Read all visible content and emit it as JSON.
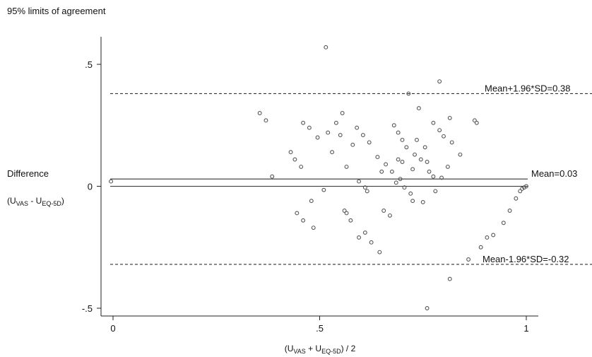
{
  "chart_data": {
    "type": "scatter",
    "title": "95% limits of agreement",
    "ylabel": {
      "line1": "Difference",
      "prefix": "(U",
      "sub1": "VAS",
      "mid": " - U",
      "sub2": "EQ-5D",
      "suffix": ")"
    },
    "xlabel": {
      "prefix": "(U",
      "sub1": "VAS",
      "mid": " + U",
      "sub2": "EQ-5D",
      "suffix": ") / 2"
    },
    "xlim": [
      0,
      1
    ],
    "ylim": [
      -0.5,
      0.5
    ],
    "xticks": [
      {
        "value": 0,
        "label": "0"
      },
      {
        "value": 0.5,
        "label": ".5"
      },
      {
        "value": 1,
        "label": "1"
      }
    ],
    "yticks": [
      {
        "value": 0.5,
        "label": ".5"
      },
      {
        "value": 0,
        "label": "0"
      },
      {
        "value": -0.5,
        "label": "-.5"
      }
    ],
    "grid": false,
    "reference_lines": [
      {
        "value": 0.38,
        "style": "dashed",
        "label": "Mean+1.96*SD=0.38"
      },
      {
        "value": 0.03,
        "style": "solid",
        "label": "Mean=0.03"
      },
      {
        "value": -0.32,
        "style": "dashed",
        "label": "Mean-1.96*SD=-0.32"
      },
      {
        "value": 0,
        "style": "solid",
        "label": ""
      }
    ],
    "points": [
      [
        -0.005,
        0.02
      ],
      [
        0.355,
        0.3
      ],
      [
        0.37,
        0.27
      ],
      [
        0.385,
        0.04
      ],
      [
        0.43,
        0.14
      ],
      [
        0.44,
        0.11
      ],
      [
        0.445,
        -0.11
      ],
      [
        0.455,
        0.08
      ],
      [
        0.46,
        0.26
      ],
      [
        0.46,
        -0.14
      ],
      [
        0.475,
        0.24
      ],
      [
        0.48,
        -0.06
      ],
      [
        0.485,
        -0.17
      ],
      [
        0.495,
        0.2
      ],
      [
        0.51,
        -0.015
      ],
      [
        0.515,
        0.57
      ],
      [
        0.52,
        0.22
      ],
      [
        0.53,
        0.14
      ],
      [
        0.54,
        0.26
      ],
      [
        0.55,
        0.21
      ],
      [
        0.555,
        0.3
      ],
      [
        0.56,
        -0.1
      ],
      [
        0.565,
        0.08
      ],
      [
        0.565,
        -0.11
      ],
      [
        0.575,
        -0.14
      ],
      [
        0.58,
        0.17
      ],
      [
        0.59,
        0.24
      ],
      [
        0.595,
        0.02
      ],
      [
        0.595,
        -0.21
      ],
      [
        0.605,
        0.21
      ],
      [
        0.61,
        -0.005
      ],
      [
        0.61,
        -0.19
      ],
      [
        0.615,
        -0.02
      ],
      [
        0.62,
        0.18
      ],
      [
        0.625,
        -0.23
      ],
      [
        0.64,
        0.12
      ],
      [
        0.645,
        -0.27
      ],
      [
        0.65,
        0.06
      ],
      [
        0.655,
        -0.1
      ],
      [
        0.66,
        0.09
      ],
      [
        0.67,
        -0.12
      ],
      [
        0.675,
        0.06
      ],
      [
        0.68,
        0.25
      ],
      [
        0.685,
        0.015
      ],
      [
        0.69,
        0.22
      ],
      [
        0.69,
        0.11
      ],
      [
        0.695,
        0.03
      ],
      [
        0.7,
        0.19
      ],
      [
        0.7,
        0.1
      ],
      [
        0.705,
        -0.005
      ],
      [
        0.71,
        0.16
      ],
      [
        0.715,
        0.38
      ],
      [
        0.72,
        -0.03
      ],
      [
        0.725,
        0.07
      ],
      [
        0.725,
        -0.06
      ],
      [
        0.73,
        0.13
      ],
      [
        0.735,
        0.19
      ],
      [
        0.74,
        0.32
      ],
      [
        0.745,
        0.11
      ],
      [
        0.75,
        -0.065
      ],
      [
        0.755,
        0.16
      ],
      [
        0.76,
        0.1
      ],
      [
        0.76,
        -0.5
      ],
      [
        0.765,
        0.06
      ],
      [
        0.775,
        0.04
      ],
      [
        0.775,
        0.26
      ],
      [
        0.78,
        -0.02
      ],
      [
        0.79,
        0.23
      ],
      [
        0.79,
        0.43
      ],
      [
        0.795,
        0.035
      ],
      [
        0.8,
        0.205
      ],
      [
        0.81,
        0.08
      ],
      [
        0.815,
        0.28
      ],
      [
        0.815,
        -0.38
      ],
      [
        0.82,
        0.18
      ],
      [
        0.84,
        0.13
      ],
      [
        0.86,
        -0.3
      ],
      [
        0.875,
        0.27
      ],
      [
        0.88,
        0.26
      ],
      [
        0.89,
        -0.25
      ],
      [
        0.905,
        -0.21
      ],
      [
        0.92,
        -0.2
      ],
      [
        0.945,
        -0.15
      ],
      [
        0.96,
        -0.1
      ],
      [
        0.975,
        -0.05
      ],
      [
        0.985,
        -0.02
      ],
      [
        0.99,
        -0.01
      ],
      [
        0.995,
        -0.005
      ],
      [
        1.0,
        0.0
      ]
    ]
  }
}
